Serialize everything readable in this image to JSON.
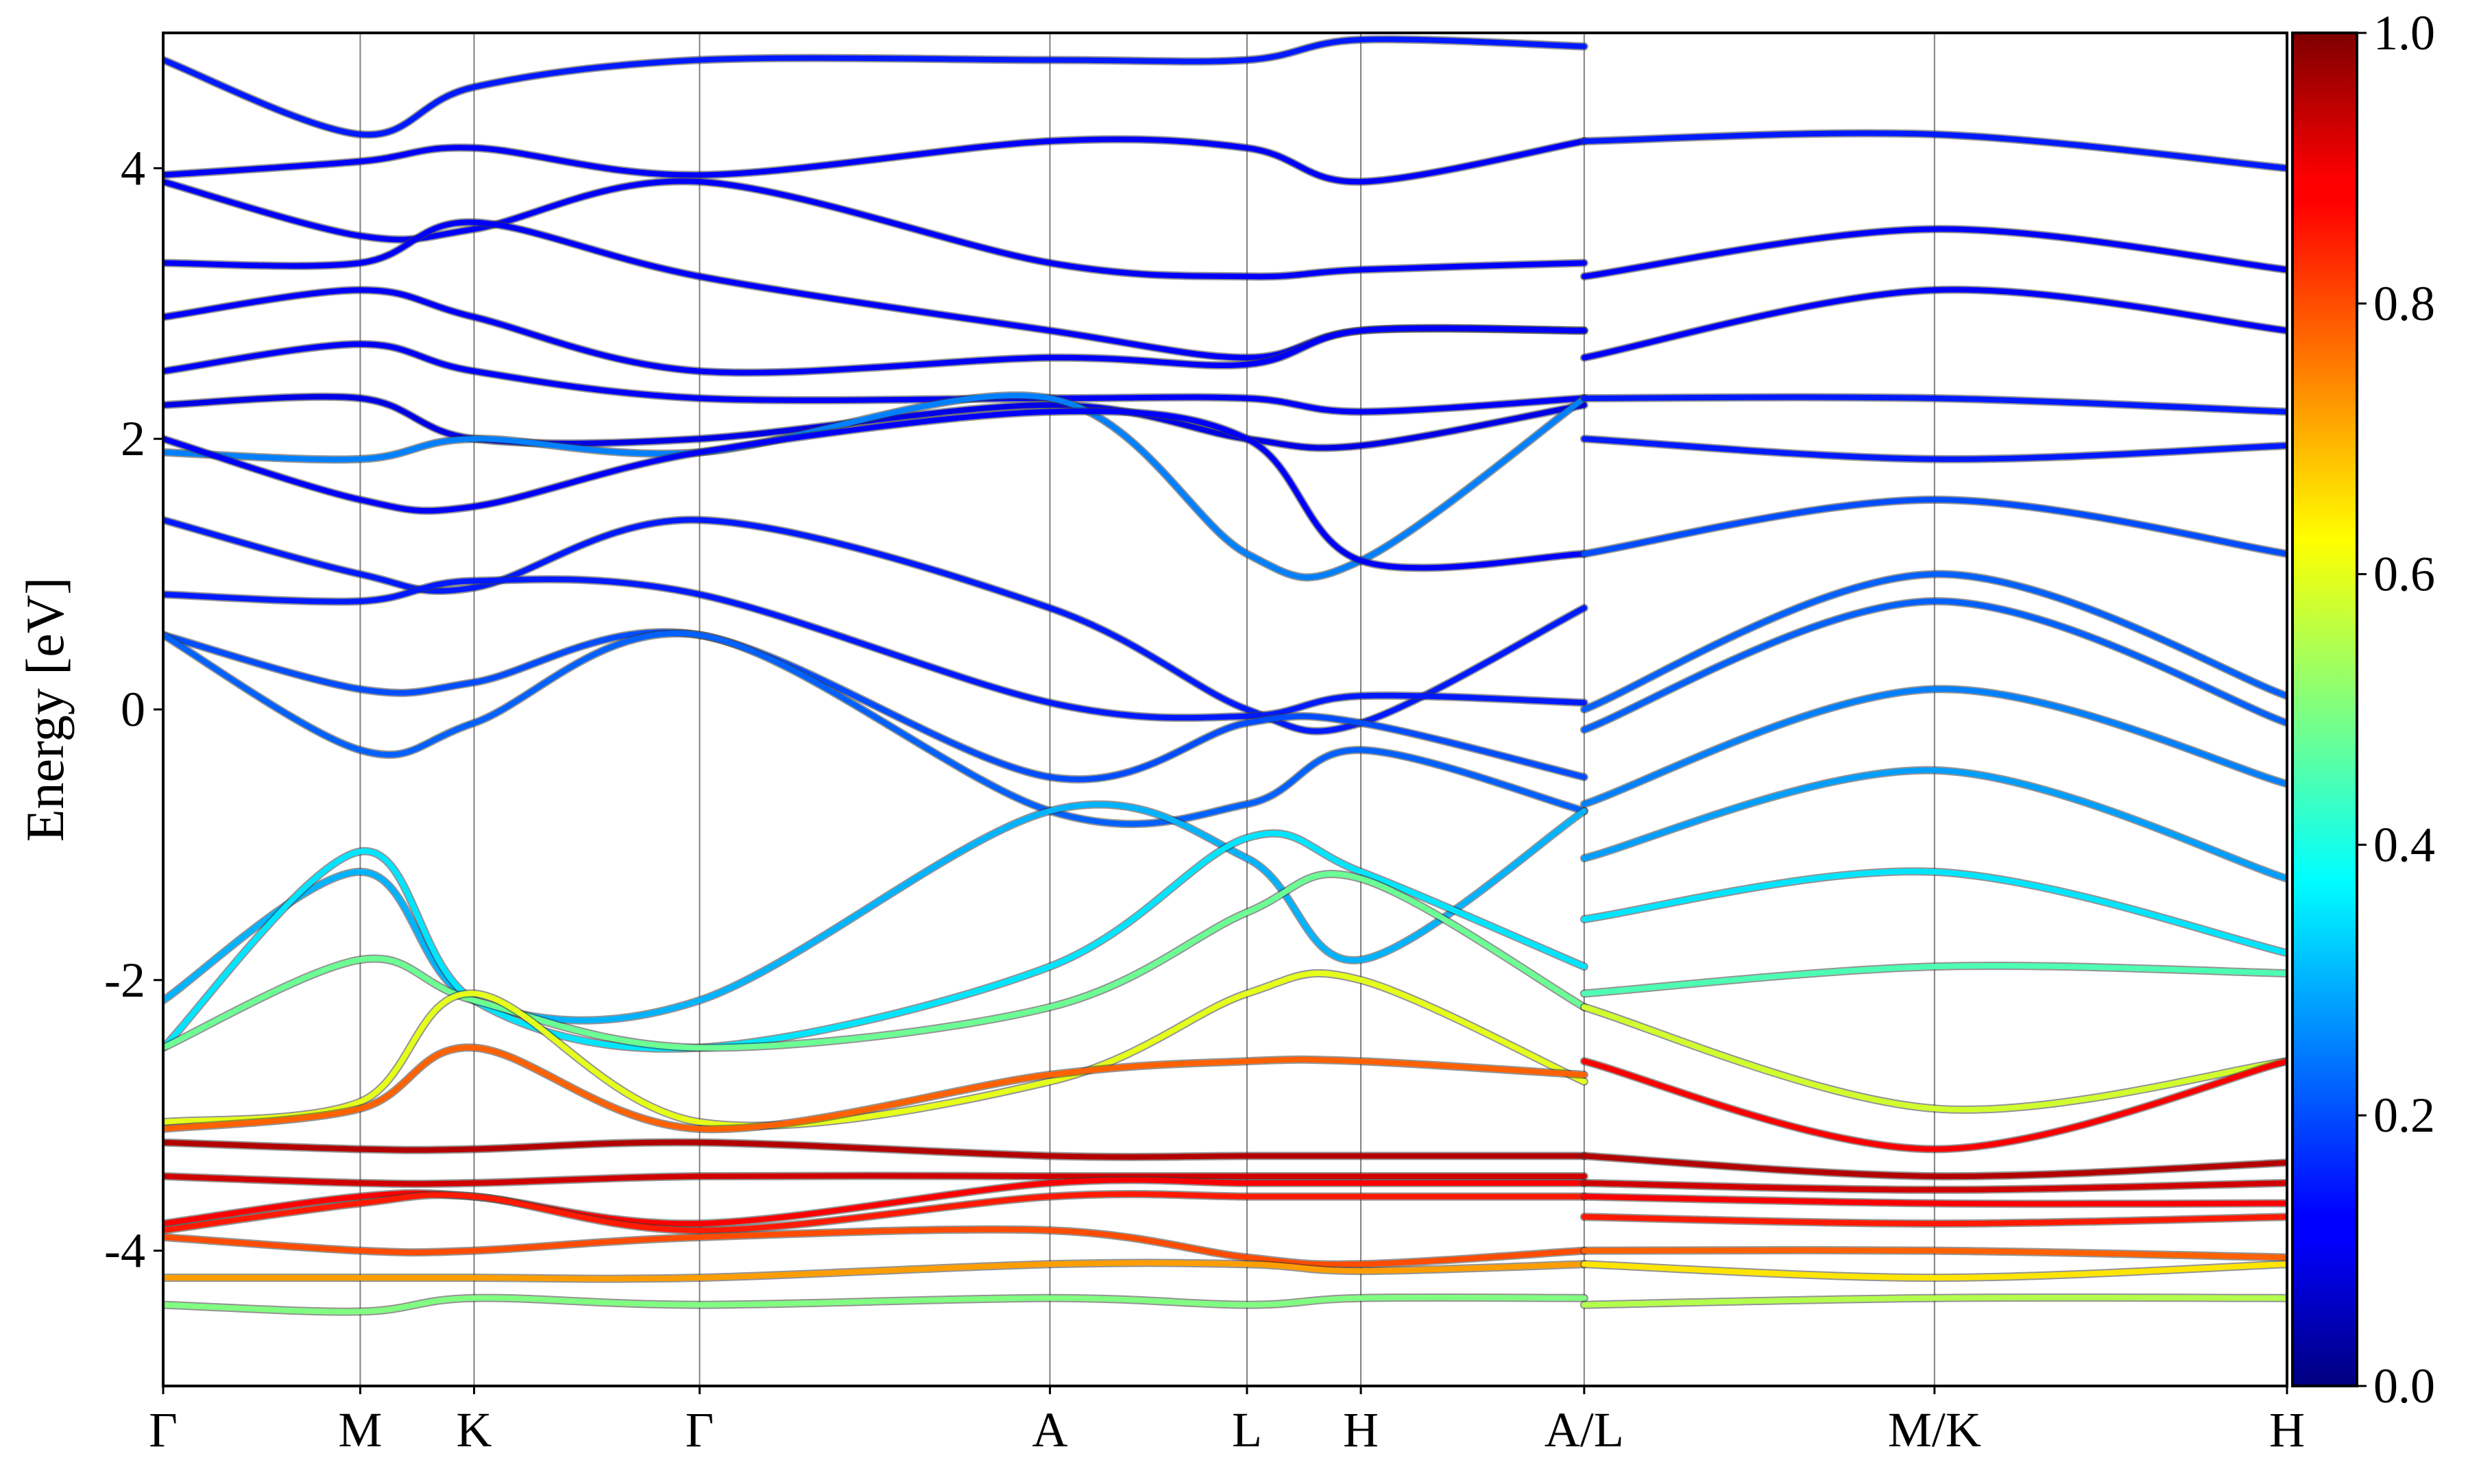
{
  "chart_data": {
    "type": "line",
    "title": "",
    "xlabel": "",
    "ylabel": "Energy [eV]",
    "ylim": [
      -5,
      5
    ],
    "xlim": [
      0,
      9.7
    ],
    "yticks": [
      -4,
      -2,
      0,
      2,
      4
    ],
    "ytick_labels": [
      "-4",
      "-2",
      "0",
      "2",
      "4"
    ],
    "high_symmetry_points": [
      {
        "label": "Γ",
        "x": 0.0
      },
      {
        "label": "M",
        "x": 0.9
      },
      {
        "label": "K",
        "x": 1.42
      },
      {
        "label": "Γ",
        "x": 2.45
      },
      {
        "label": "A",
        "x": 4.05
      },
      {
        "label": "L",
        "x": 4.95
      },
      {
        "label": "H",
        "x": 5.47
      },
      {
        "label": "A/L",
        "x": 6.49
      },
      {
        "label": "M/K",
        "x": 8.09
      },
      {
        "label": "H",
        "x": 9.7
      }
    ],
    "grid": "vertical lines at high-symmetry points",
    "colormap": "jet",
    "colorbar": {
      "range": [
        0.0,
        1.0
      ],
      "ticks": [
        0.0,
        0.2,
        0.4,
        0.6,
        0.8,
        1.0
      ],
      "tick_labels": [
        "0.0",
        "0.2",
        "0.4",
        "0.6",
        "0.8",
        "1.0"
      ]
    },
    "series": [
      {
        "color_value": 0.15,
        "x": [
          0,
          0.9,
          1.42,
          2.45,
          4.05,
          4.95,
          5.47,
          6.49
        ],
        "y": [
          4.8,
          4.25,
          4.6,
          4.8,
          4.8,
          4.8,
          4.95,
          4.9
        ]
      },
      {
        "color_value": 0.12,
        "x": [
          0,
          0.9,
          1.42,
          2.45,
          4.05,
          4.95,
          5.47,
          6.49
        ],
        "y": [
          3.95,
          4.05,
          4.15,
          3.95,
          4.2,
          4.15,
          3.9,
          4.2
        ]
      },
      {
        "color_value": 0.12,
        "x": [
          0,
          0.9,
          1.42,
          2.45,
          4.05,
          4.95,
          5.47,
          6.49
        ],
        "y": [
          3.9,
          3.5,
          3.55,
          3.9,
          3.3,
          3.2,
          3.25,
          3.3
        ]
      },
      {
        "color_value": 0.12,
        "x": [
          0,
          0.9,
          1.42,
          2.45,
          4.05,
          4.95,
          5.47,
          6.49
        ],
        "y": [
          3.3,
          3.3,
          3.6,
          3.2,
          2.8,
          2.6,
          2.8,
          2.8
        ]
      },
      {
        "color_value": 0.12,
        "x": [
          0,
          0.9,
          1.42,
          2.45,
          4.05,
          4.95,
          5.47,
          6.49
        ],
        "y": [
          2.9,
          3.1,
          2.9,
          2.5,
          2.6,
          2.55,
          2.8,
          2.8
        ]
      },
      {
        "color_value": 0.12,
        "x": [
          0,
          0.9,
          1.42,
          2.45,
          4.05,
          4.95,
          5.47,
          6.49
        ],
        "y": [
          2.5,
          2.7,
          2.5,
          2.3,
          2.3,
          2.3,
          2.2,
          2.3
        ]
      },
      {
        "color_value": 0.1,
        "x": [
          0,
          0.9,
          1.42,
          2.45,
          4.05,
          4.95,
          5.47,
          6.49
        ],
        "y": [
          2.25,
          2.3,
          2.0,
          2.0,
          2.25,
          2.0,
          1.95,
          2.25
        ]
      },
      {
        "color_value": 0.25,
        "x": [
          0,
          0.9,
          1.42,
          2.45,
          4.05,
          4.95,
          5.47,
          6.49
        ],
        "y": [
          1.9,
          1.85,
          2.0,
          1.9,
          2.3,
          1.15,
          1.1,
          2.3
        ]
      },
      {
        "color_value": 0.12,
        "x": [
          0,
          0.9,
          1.42,
          2.45,
          4.05,
          4.95,
          5.47,
          6.49
        ],
        "y": [
          2.0,
          1.55,
          1.5,
          1.9,
          2.2,
          2.0,
          1.1,
          1.15
        ]
      },
      {
        "color_value": 0.15,
        "x": [
          0,
          0.9,
          1.42,
          2.45,
          4.05,
          4.95,
          5.47,
          6.49
        ],
        "y": [
          1.4,
          1.0,
          0.9,
          1.4,
          0.75,
          0.0,
          -0.1,
          0.75
        ]
      },
      {
        "color_value": 0.15,
        "x": [
          0,
          0.9,
          1.42,
          2.45,
          4.05,
          4.95,
          5.47,
          6.49
        ],
        "y": [
          0.85,
          0.8,
          0.95,
          0.85,
          0.05,
          -0.05,
          0.1,
          0.05
        ]
      },
      {
        "color_value": 0.2,
        "x": [
          0,
          0.9,
          1.42,
          2.45,
          4.05,
          4.95,
          5.47,
          6.49
        ],
        "y": [
          0.55,
          0.15,
          0.2,
          0.55,
          -0.5,
          -0.1,
          -0.1,
          -0.5
        ]
      },
      {
        "color_value": 0.22,
        "x": [
          0,
          0.9,
          1.42,
          2.45,
          4.05,
          4.95,
          5.47,
          6.49
        ],
        "y": [
          0.55,
          -0.3,
          -0.1,
          0.55,
          -0.75,
          -0.7,
          -0.3,
          -0.75
        ]
      },
      {
        "color_value": 0.3,
        "x": [
          0,
          0.9,
          1.42,
          2.45,
          4.05,
          4.95,
          5.47,
          6.49
        ],
        "y": [
          -2.15,
          -1.2,
          -2.15,
          -2.15,
          -0.75,
          -1.1,
          -1.85,
          -0.75
        ]
      },
      {
        "color_value": 0.35,
        "x": [
          0,
          0.9,
          1.42,
          2.45,
          4.05,
          4.95,
          5.47,
          6.49
        ],
        "y": [
          -2.5,
          -1.05,
          -2.15,
          -2.5,
          -1.9,
          -0.95,
          -1.2,
          -1.9
        ]
      },
      {
        "color_value": 0.48,
        "x": [
          0,
          0.9,
          1.42,
          2.45,
          4.05,
          4.95,
          5.47,
          6.49
        ],
        "y": [
          -2.5,
          -1.85,
          -2.15,
          -2.5,
          -2.2,
          -1.5,
          -1.25,
          -2.2
        ]
      },
      {
        "color_value": 0.6,
        "x": [
          0,
          0.9,
          1.42,
          2.45,
          4.05,
          4.95,
          5.47,
          6.49
        ],
        "y": [
          -3.05,
          -2.9,
          -2.1,
          -3.05,
          -2.75,
          -2.1,
          -2.0,
          -2.75
        ]
      },
      {
        "color_value": 0.78,
        "x": [
          0,
          0.9,
          1.42,
          2.45,
          4.05,
          4.95,
          5.47,
          6.49
        ],
        "y": [
          -3.1,
          -2.95,
          -2.5,
          -3.1,
          -2.7,
          -2.6,
          -2.6,
          -2.7
        ]
      },
      {
        "color_value": 0.95,
        "x": [
          0,
          0.9,
          1.42,
          2.45,
          4.05,
          4.95,
          5.47,
          6.49
        ],
        "y": [
          -3.2,
          -3.25,
          -3.25,
          -3.2,
          -3.3,
          -3.3,
          -3.3,
          -3.3
        ]
      },
      {
        "color_value": 0.92,
        "x": [
          0,
          0.9,
          1.42,
          2.45,
          4.05,
          4.95,
          5.47,
          6.49
        ],
        "y": [
          -3.45,
          -3.5,
          -3.5,
          -3.45,
          -3.45,
          -3.45,
          -3.45,
          -3.45
        ]
      },
      {
        "color_value": 0.88,
        "x": [
          0,
          0.9,
          1.42,
          2.45,
          4.05,
          4.95,
          5.47,
          6.49
        ],
        "y": [
          -3.8,
          -3.6,
          -3.6,
          -3.8,
          -3.5,
          -3.5,
          -3.5,
          -3.5
        ]
      },
      {
        "color_value": 0.85,
        "x": [
          0,
          0.9,
          1.42,
          2.45,
          4.05,
          4.95,
          5.47,
          6.49
        ],
        "y": [
          -3.85,
          -3.65,
          -3.6,
          -3.85,
          -3.6,
          -3.6,
          -3.6,
          -3.6
        ]
      },
      {
        "color_value": 0.8,
        "x": [
          0,
          0.9,
          1.42,
          2.45,
          4.05,
          4.95,
          5.47,
          6.49
        ],
        "y": [
          -3.9,
          -4.0,
          -4.0,
          -3.9,
          -3.85,
          -4.05,
          -4.1,
          -4.0
        ]
      },
      {
        "color_value": 0.72,
        "x": [
          0,
          0.9,
          1.42,
          2.45,
          4.05,
          4.95,
          5.47,
          6.49
        ],
        "y": [
          -4.2,
          -4.2,
          -4.2,
          -4.2,
          -4.1,
          -4.1,
          -4.15,
          -4.1
        ]
      },
      {
        "color_value": 0.5,
        "x": [
          0,
          0.9,
          1.42,
          2.45,
          4.05,
          4.95,
          5.47,
          6.49
        ],
        "y": [
          -4.4,
          -4.45,
          -4.35,
          -4.4,
          -4.35,
          -4.4,
          -4.35,
          -4.35
        ]
      },
      {
        "color_value": 0.15,
        "x": [
          6.49,
          8.09,
          9.7
        ],
        "y": [
          4.2,
          4.25,
          4.0
        ]
      },
      {
        "color_value": 0.12,
        "x": [
          6.49,
          8.09,
          9.7
        ],
        "y": [
          3.2,
          3.55,
          3.25
        ]
      },
      {
        "color_value": 0.12,
        "x": [
          6.49,
          8.09,
          9.7
        ],
        "y": [
          2.6,
          3.1,
          2.8
        ]
      },
      {
        "color_value": 0.15,
        "x": [
          6.49,
          8.09,
          9.7
        ],
        "y": [
          2.3,
          2.3,
          2.2
        ]
      },
      {
        "color_value": 0.15,
        "x": [
          6.49,
          8.09,
          9.7
        ],
        "y": [
          2.0,
          1.85,
          1.95
        ]
      },
      {
        "color_value": 0.2,
        "x": [
          6.49,
          8.09,
          9.7
        ],
        "y": [
          1.15,
          1.55,
          1.15
        ]
      },
      {
        "color_value": 0.22,
        "x": [
          6.49,
          8.09,
          9.7
        ],
        "y": [
          0.0,
          1.0,
          0.1
        ]
      },
      {
        "color_value": 0.22,
        "x": [
          6.49,
          8.09,
          9.7
        ],
        "y": [
          -0.15,
          0.8,
          -0.1
        ]
      },
      {
        "color_value": 0.25,
        "x": [
          6.49,
          8.09,
          9.7
        ],
        "y": [
          -0.7,
          0.15,
          -0.55
        ]
      },
      {
        "color_value": 0.28,
        "x": [
          6.49,
          8.09,
          9.7
        ],
        "y": [
          -1.1,
          -0.45,
          -1.25
        ]
      },
      {
        "color_value": 0.35,
        "x": [
          6.49,
          8.09,
          9.7
        ],
        "y": [
          -1.55,
          -1.2,
          -1.8
        ]
      },
      {
        "color_value": 0.45,
        "x": [
          6.49,
          8.09,
          9.7
        ],
        "y": [
          -2.1,
          -1.9,
          -1.95
        ]
      },
      {
        "color_value": 0.58,
        "x": [
          6.49,
          8.09,
          9.7
        ],
        "y": [
          -2.2,
          -2.95,
          -2.6
        ]
      },
      {
        "color_value": 0.88,
        "x": [
          6.49,
          8.09,
          9.7
        ],
        "y": [
          -2.6,
          -3.25,
          -2.6
        ]
      },
      {
        "color_value": 0.95,
        "x": [
          6.49,
          8.09,
          9.7
        ],
        "y": [
          -3.3,
          -3.45,
          -3.35
        ]
      },
      {
        "color_value": 0.92,
        "x": [
          6.49,
          8.09,
          9.7
        ],
        "y": [
          -3.5,
          -3.55,
          -3.5
        ]
      },
      {
        "color_value": 0.88,
        "x": [
          6.49,
          8.09,
          9.7
        ],
        "y": [
          -3.6,
          -3.65,
          -3.65
        ]
      },
      {
        "color_value": 0.85,
        "x": [
          6.49,
          8.09,
          9.7
        ],
        "y": [
          -3.75,
          -3.8,
          -3.75
        ]
      },
      {
        "color_value": 0.78,
        "x": [
          6.49,
          8.09,
          9.7
        ],
        "y": [
          -4.0,
          -4.0,
          -4.05
        ]
      },
      {
        "color_value": 0.65,
        "x": [
          6.49,
          8.09,
          9.7
        ],
        "y": [
          -4.1,
          -4.2,
          -4.1
        ]
      },
      {
        "color_value": 0.55,
        "x": [
          6.49,
          8.09,
          9.7
        ],
        "y": [
          -4.4,
          -4.35,
          -4.35
        ]
      }
    ]
  }
}
